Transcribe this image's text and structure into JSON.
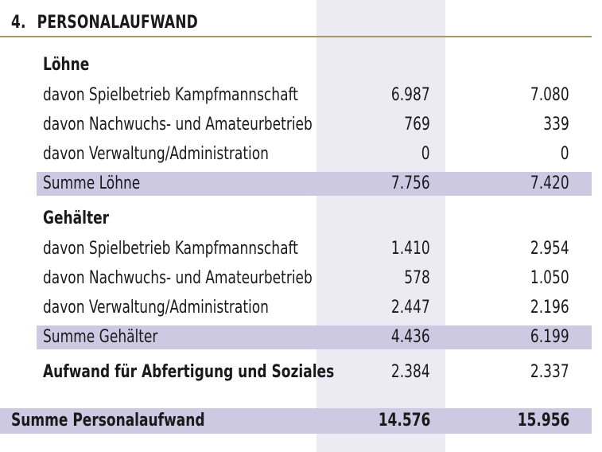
{
  "section": {
    "number": "4.",
    "title": "PERSONALAUFWAND"
  },
  "loehne": {
    "heading": "Löhne",
    "rows": [
      {
        "label": "davon Spielbetrieb Kampfmannschaft",
        "v1": "6.987",
        "v2": "7.080"
      },
      {
        "label": "davon Nachwuchs- und Amateurbetrieb",
        "v1": "769",
        "v2": "339"
      },
      {
        "label": "davon Verwaltung/Administration",
        "v1": "0",
        "v2": "0"
      }
    ],
    "sum": {
      "label": "Summe Löhne",
      "v1": "7.756",
      "v2": "7.420"
    }
  },
  "gehaelter": {
    "heading": "Gehälter",
    "rows": [
      {
        "label": "davon Spielbetrieb Kampfmannschaft",
        "v1": "1.410",
        "v2": "2.954"
      },
      {
        "label": "davon Nachwuchs- und Amateurbetrieb",
        "v1": "578",
        "v2": "1.050"
      },
      {
        "label": "davon Verwaltung/Administration",
        "v1": "2.447",
        "v2": "2.196"
      }
    ],
    "sum": {
      "label": "Summe Gehälter",
      "v1": "4.436",
      "v2": "6.199"
    }
  },
  "abfertigung": {
    "label": "Aufwand für Abfertigung und Soziales",
    "v1": "2.384",
    "v2": "2.337"
  },
  "total": {
    "label": "Summe Personalaufwand",
    "v1": "14.576",
    "v2": "15.956"
  },
  "colors": {
    "accent_rule": "#a99768",
    "row_band": "#cdc9e3",
    "column_band": "#ecebf4"
  }
}
